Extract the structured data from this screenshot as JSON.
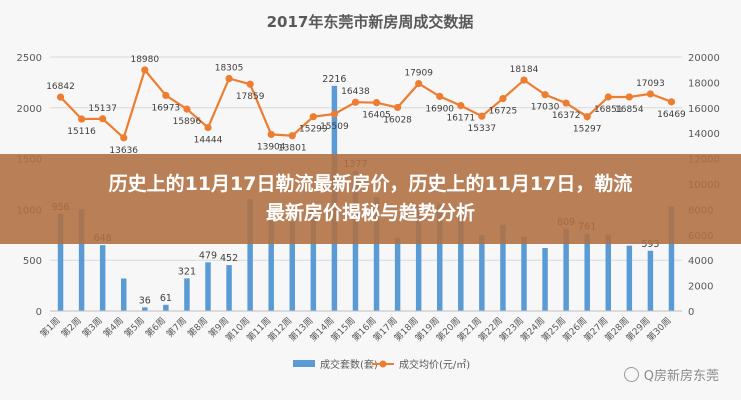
{
  "banner": {
    "line1": "历史上的11月17日勒流最新房价，历史上的11月17日，勒流",
    "line2": "最新房价揭秘与趋势分析"
  },
  "watermark": {
    "text": "Q房新房东莞",
    "icon": "wechat-icon"
  },
  "chart_data": {
    "type": "bar",
    "title": "2017年东莞市新房周成交数据",
    "categories": [
      "第1周",
      "第2周",
      "第3周",
      "第4周",
      "第5周",
      "第6周",
      "第7周",
      "第8周",
      "第9周",
      "第10周",
      "第11周",
      "第12周",
      "第13周",
      "第14周",
      "第15周",
      "第16周",
      "第17周",
      "第18周",
      "第19周",
      "第20周",
      "第21周",
      "第22周",
      "第23周",
      "第24周",
      "第25周",
      "第26周",
      "第27周",
      "第28周",
      "第29周",
      "第30周"
    ],
    "ylim_left": [
      0,
      2500
    ],
    "yticks_left": [
      0,
      500,
      1000,
      1500,
      2000,
      2500
    ],
    "ylim_right": [
      0,
      20000
    ],
    "yticks_right": [
      0,
      2000,
      4000,
      6000,
      8000,
      10000,
      12000,
      14000,
      16000,
      18000,
      20000
    ],
    "series": [
      {
        "name": "成交套数(套)",
        "type": "bar",
        "axis": "left",
        "color": "#5b9bd5",
        "values": [
          956,
          1000,
          648,
          320,
          36,
          61,
          321,
          479,
          452,
          1100,
          1050,
          880,
          1000,
          2216,
          1377,
          1120,
          720,
          1030,
          1050,
          1040,
          750,
          850,
          730,
          620,
          809,
          761,
          750,
          643,
          593,
          1030
        ],
        "labels": [
          "956",
          "",
          "648",
          "",
          "36",
          "61",
          "321",
          "479",
          "452",
          "",
          "",
          "",
          "",
          "2216",
          "1377",
          "",
          "",
          "",
          "",
          "",
          "",
          "",
          "",
          "",
          "809",
          "761",
          "",
          "",
          "593",
          ""
        ]
      },
      {
        "name": "成交均价(元/㎡)",
        "type": "line",
        "axis": "right",
        "color": "#ed7d31",
        "values": [
          16842,
          15116,
          15137,
          13636,
          18980,
          16973,
          15896,
          14444,
          18305,
          17859,
          13904,
          13801,
          15299,
          15509,
          16438,
          16405,
          16028,
          17909,
          16900,
          16171,
          15337,
          16725,
          18184,
          17030,
          16372,
          15297,
          16851,
          16854,
          17093,
          16469
        ],
        "labels": [
          "16842",
          "15116",
          "15137",
          "13636",
          "18980",
          "16973",
          "15896",
          "14444",
          "18305",
          "17859",
          "13904",
          "13801",
          "15299",
          "15509",
          "16438",
          "16405",
          "16028",
          "17909",
          "16900",
          "16171",
          "15337",
          "16725",
          "18184",
          "17030",
          "16372",
          "15297",
          "16851",
          "16854",
          "17093",
          "16469"
        ]
      }
    ],
    "legend": "bottom",
    "grid": true
  }
}
